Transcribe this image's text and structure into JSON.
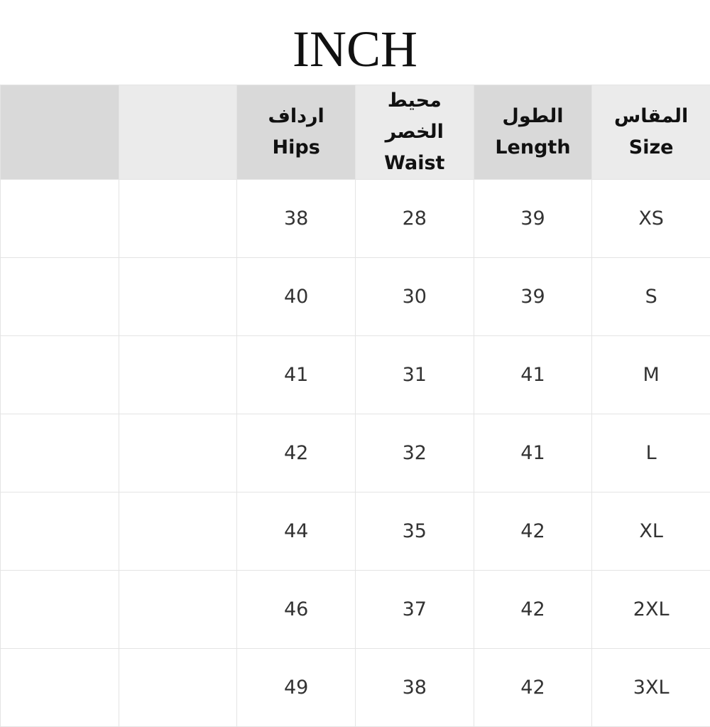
{
  "title": "INCH",
  "table": {
    "headers": [
      {
        "ar": "",
        "en": ""
      },
      {
        "ar": "",
        "en": ""
      },
      {
        "ar": "ارداف",
        "en": "Hips"
      },
      {
        "ar": "محيط الخصر",
        "en": "Waist"
      },
      {
        "ar": "الطول",
        "en": "Length"
      },
      {
        "ar": "المقاس",
        "en": "Size"
      }
    ],
    "rows": [
      [
        "",
        "",
        "38",
        "28",
        "39",
        "XS"
      ],
      [
        "",
        "",
        "40",
        "30",
        "39",
        "S"
      ],
      [
        "",
        "",
        "41",
        "31",
        "41",
        "M"
      ],
      [
        "",
        "",
        "42",
        "32",
        "41",
        "L"
      ],
      [
        "",
        "",
        "44",
        "35",
        "42",
        "XL"
      ],
      [
        "",
        "",
        "46",
        "37",
        "42",
        "2XL"
      ],
      [
        "",
        "",
        "49",
        "38",
        "42",
        "3XL"
      ]
    ]
  },
  "colors": {
    "header_dark": "#d9d9d9",
    "header_light": "#ebebeb",
    "border": "#e4e4e4"
  }
}
